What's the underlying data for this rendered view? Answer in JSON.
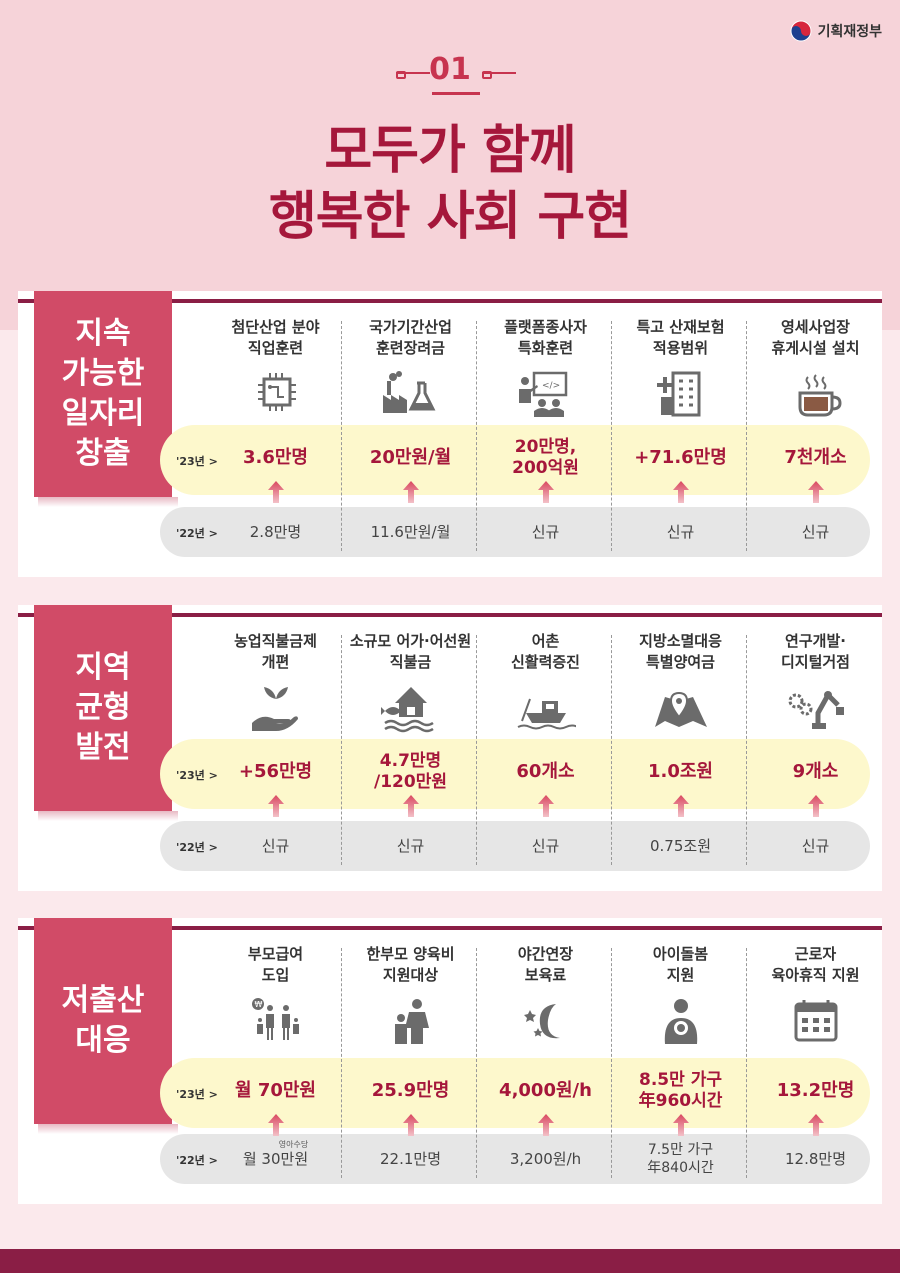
{
  "logo": {
    "text": "기획재정부"
  },
  "number": "01",
  "title": {
    "line1": "모두가 함께",
    "line2": "행복한 사회 구현"
  },
  "year23_label": "'23년 >",
  "year22_label": "'22년 >",
  "sections": [
    {
      "tag": [
        "지속",
        "가능한",
        "일자리",
        "창출"
      ],
      "columns": [
        {
          "head": [
            "첨단산업 분야",
            "직업훈련"
          ],
          "icon": "chip-icon",
          "v23": [
            "3.6만명"
          ],
          "v22": [
            "2.8만명"
          ]
        },
        {
          "head": [
            "국가기간산업",
            "훈련장려금"
          ],
          "icon": "factory-flask-icon",
          "v23": [
            "20만원/월"
          ],
          "v22": [
            "11.6만원/월"
          ]
        },
        {
          "head": [
            "플랫폼종사자",
            "특화훈련"
          ],
          "icon": "presentation-icon",
          "v23": [
            "20만명,",
            "200억원"
          ],
          "v22": [
            "신규"
          ]
        },
        {
          "head": [
            "특고 산재보험",
            "적용범위"
          ],
          "icon": "hospital-building-icon",
          "v23": [
            "+71.6만명"
          ],
          "v22": [
            "신규"
          ]
        },
        {
          "head": [
            "영세사업장",
            "휴게시설 설치"
          ],
          "icon": "coffee-cup-icon",
          "v23": [
            "7천개소"
          ],
          "v22": [
            "신규"
          ]
        }
      ]
    },
    {
      "tag": [
        "지역",
        "균형",
        "발전"
      ],
      "columns": [
        {
          "head": [
            "농업직불금제",
            "개편"
          ],
          "icon": "sprout-hand-icon",
          "v23": [
            "+56만명"
          ],
          "v22": [
            "신규"
          ]
        },
        {
          "head": [
            "소규모 어가·어선원",
            "직불금"
          ],
          "icon": "fish-house-icon",
          "v23": [
            "4.7만명",
            "/120만원"
          ],
          "v22": [
            "신규"
          ]
        },
        {
          "head": [
            "어촌",
            "신활력증진"
          ],
          "icon": "boat-icon",
          "v23": [
            "60개소"
          ],
          "v22": [
            "신규"
          ]
        },
        {
          "head": [
            "지방소멸대응",
            "특별양여금"
          ],
          "icon": "map-pin-icon",
          "v23": [
            "1.0조원"
          ],
          "v22": [
            "0.75조원"
          ]
        },
        {
          "head": [
            "연구개발·",
            "디지털거점"
          ],
          "icon": "robot-arm-gear-icon",
          "v23": [
            "9개소"
          ],
          "v22": [
            "신규"
          ]
        }
      ]
    },
    {
      "tag": [
        "저출산",
        "대응"
      ],
      "columns": [
        {
          "head": [
            "부모급여",
            "도입"
          ],
          "icon": "family-won-icon",
          "v23": [
            "월 70만원"
          ],
          "v22": [
            "월 30만원"
          ],
          "note22": "영아수당"
        },
        {
          "head": [
            "한부모 양육비",
            "지원대상"
          ],
          "icon": "parent-child-icon",
          "v23": [
            "25.9만명"
          ],
          "v22": [
            "22.1만명"
          ]
        },
        {
          "head": [
            "야간연장",
            "보육료"
          ],
          "icon": "moon-stars-icon",
          "v23": [
            "4,000원/h"
          ],
          "v22": [
            "3,200원/h"
          ]
        },
        {
          "head": [
            "아이돌봄",
            "지원"
          ],
          "icon": "baby-care-icon",
          "v23": [
            "8.5만 가구",
            "年960시간"
          ],
          "v22": [
            "7.5만 가구",
            "年840시간"
          ]
        },
        {
          "head": [
            "근로자",
            "육아휴직 지원"
          ],
          "icon": "calendar-icon",
          "v23": [
            "13.2만명"
          ],
          "v22": [
            "12.8만명"
          ]
        }
      ]
    }
  ],
  "colors": {
    "accent": "#a5173b",
    "tag": "#d14b67",
    "dark": "#8a1e45",
    "band23": "#fdf8cc",
    "band22": "#e6e6e6"
  }
}
